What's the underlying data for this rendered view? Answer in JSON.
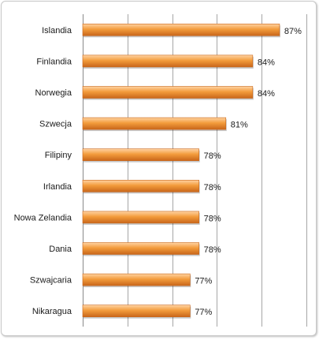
{
  "chart_data": {
    "type": "bar",
    "orientation": "horizontal",
    "title": "",
    "xlabel": "",
    "ylabel": "",
    "categories": [
      "Islandia",
      "Finlandia",
      "Norwegia",
      "Szwecja",
      "Filipiny",
      "Irlandia",
      "Nowa Zelandia",
      "Dania",
      "Szwajcaria",
      "Nikaragua"
    ],
    "values": [
      87,
      84,
      84,
      81,
      78,
      78,
      78,
      78,
      77,
      77
    ],
    "value_labels": [
      "87%",
      "84%",
      "84%",
      "81%",
      "78%",
      "78%",
      "78%",
      "78%",
      "77%",
      "77%"
    ],
    "xlim": [
      65,
      90
    ],
    "gridlines": [
      65,
      70,
      75,
      80,
      85,
      90
    ],
    "grid": true,
    "legend": "none",
    "bar_color": "#f39c3c",
    "bar_color_light": "#ffd3a3",
    "bar_color_dark": "#c9661a",
    "grid_color": "#a6a6a6"
  }
}
